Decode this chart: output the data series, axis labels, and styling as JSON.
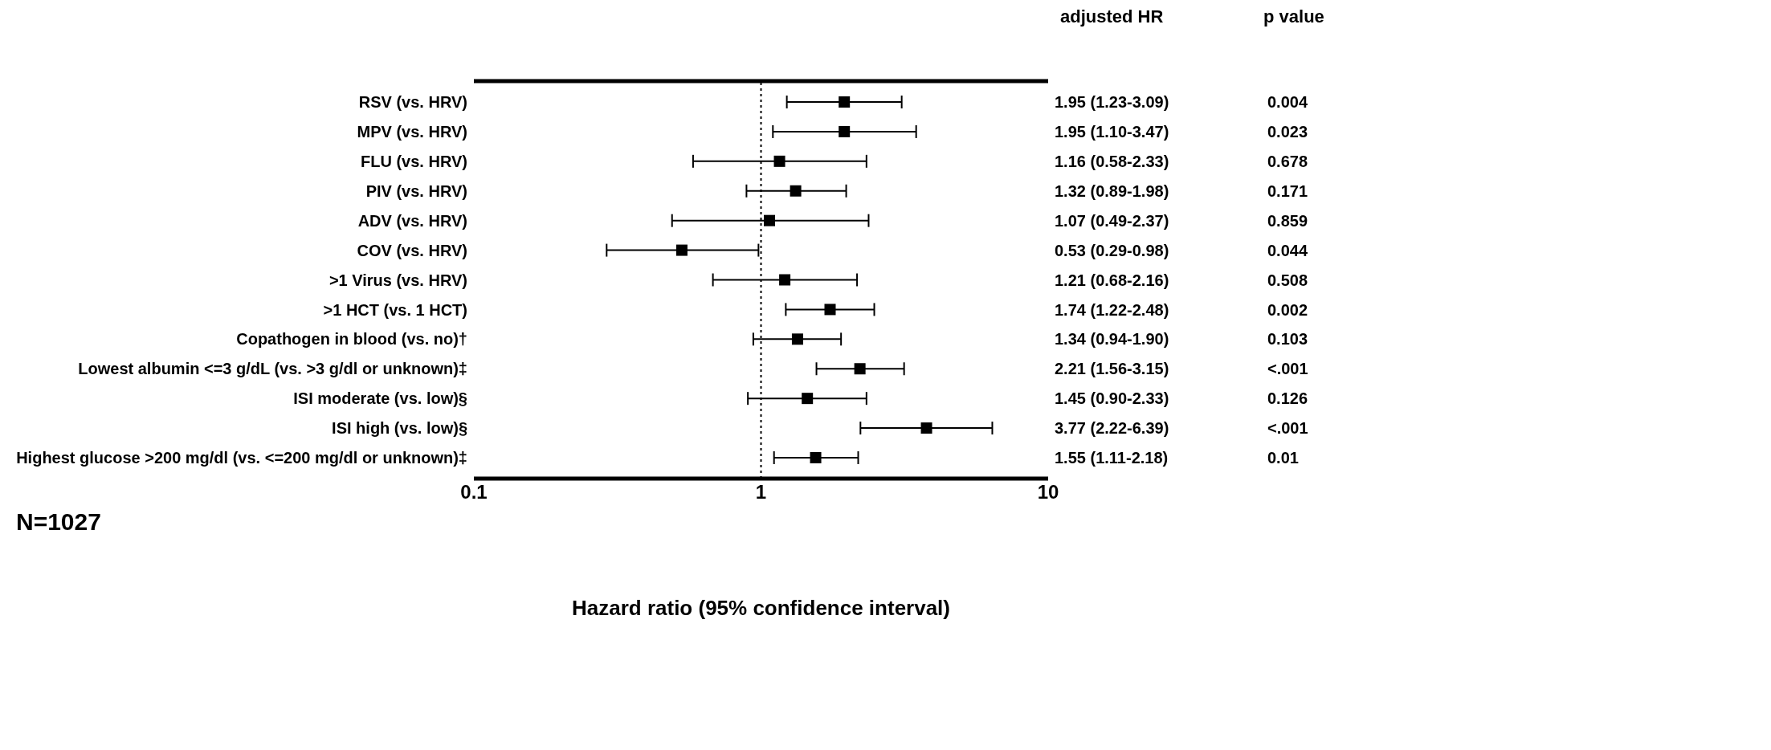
{
  "chart_data": {
    "type": "scatter",
    "orientation": "horizontal",
    "xlabel": "Hazard ratio (95% confidence interval)",
    "categories": [
      "RSV (vs. HRV)",
      "MPV (vs. HRV)",
      "FLU (vs. HRV)",
      "PIV (vs. HRV)",
      "ADV (vs. HRV)",
      "COV (vs. HRV)",
      ">1 Virus (vs. HRV)",
      ">1 HCT (vs. 1 HCT)",
      "Copathogen in blood (vs. no)†",
      "Lowest albumin <=3 g/dL (vs. >3 g/dl or unknown)‡",
      "ISI moderate (vs. low)§",
      "ISI high (vs. low)§",
      "Highest glucose >200 mg/dl (vs. <=200 mg/dl or unknown)‡"
    ],
    "values": [
      1.95,
      1.95,
      1.16,
      1.32,
      1.07,
      0.53,
      1.21,
      1.74,
      1.34,
      2.21,
      1.45,
      3.77,
      1.55
    ],
    "errors": [
      [
        1.23,
        3.09
      ],
      [
        1.1,
        3.47
      ],
      [
        0.58,
        2.33
      ],
      [
        0.89,
        1.98
      ],
      [
        0.49,
        2.37
      ],
      [
        0.29,
        0.98
      ],
      [
        0.68,
        2.16
      ],
      [
        1.22,
        2.48
      ],
      [
        0.94,
        1.9
      ],
      [
        1.56,
        3.15
      ],
      [
        0.9,
        2.33
      ],
      [
        2.22,
        6.39
      ],
      [
        1.11,
        2.18
      ]
    ],
    "value_labels": [
      "1.95 (1.23-3.09)",
      "1.95 (1.10-3.47)",
      "1.16 (0.58-2.33)",
      "1.32 (0.89-1.98)",
      "1.07 (0.49-2.37)",
      "0.53 (0.29-0.98)",
      "1.21 (0.68-2.16)",
      "1.74 (1.22-2.48)",
      "1.34 (0.94-1.90)",
      "2.21 (1.56-3.15)",
      "1.45 (0.90-2.33)",
      "3.77 (2.22-6.39)",
      "1.55 (1.11-2.18)"
    ],
    "color": "#000000",
    "marker": "square",
    "log": "x",
    "xlim": [
      0.1,
      10
    ],
    "xticks": [
      0.1,
      1,
      10
    ],
    "grid": false,
    "legend": false,
    "ref_lines": [
      {
        "axis": "x",
        "value": 1,
        "line_style": "dotted",
        "color": "#000000"
      }
    ],
    "annotations": [
      "adjusted HR",
      "p value",
      "N=1027",
      "0.004",
      "0.023",
      "0.678",
      "0.171",
      "0.859",
      "0.044",
      "0.508",
      "0.002",
      "0.103",
      "<.001",
      "0.126",
      "<.001",
      "0.01"
    ]
  }
}
